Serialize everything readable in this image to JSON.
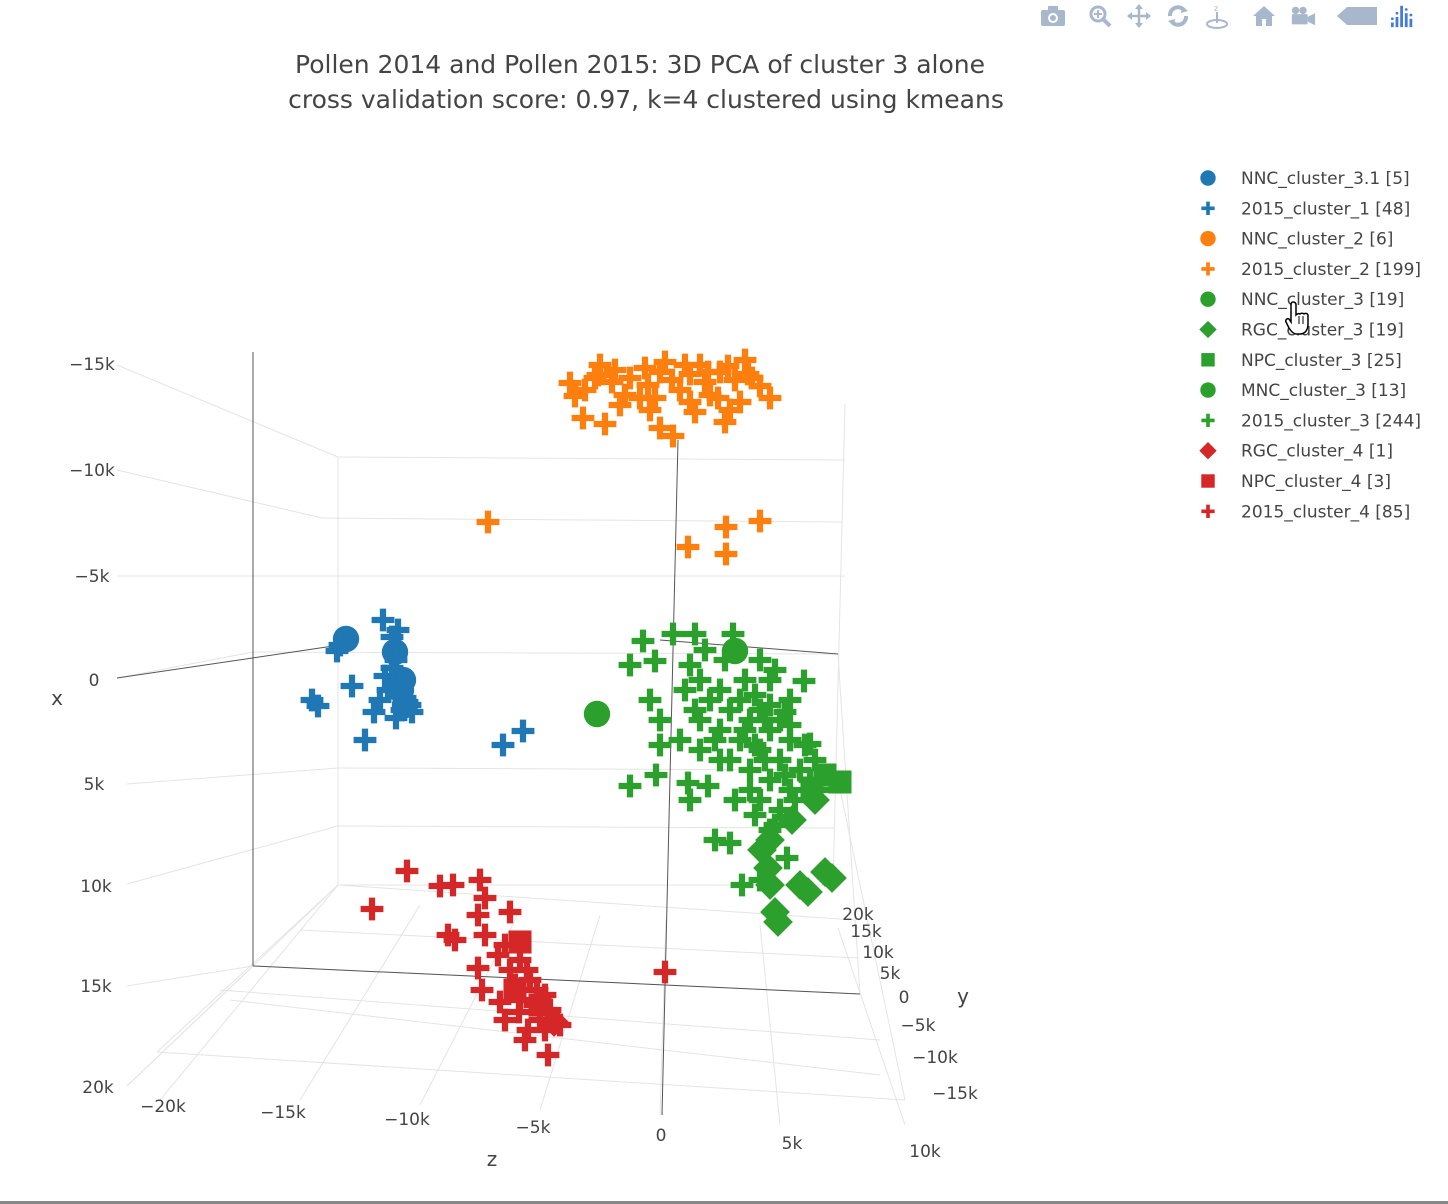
{
  "modebar": {
    "buttons": [
      "camera-icon",
      "zoom-icon",
      "pan-icon",
      "orbit-rotation-icon",
      "turntable-rotation-icon",
      "reset-camera-icon",
      "save-camera-icon",
      "toggle-hover-icon",
      "plotly-logo-icon"
    ],
    "icon_color": "#a8b8cc",
    "logo_color": "#447adb"
  },
  "chart_data": {
    "type": "scatter",
    "dimensions": 3,
    "title": "Pollen 2014 and Pollen 2015: 3D PCA of cluster 3 alone",
    "subtitle": "cross validation score: 0.97, k=4 clustered using kmeans",
    "axes": {
      "x": {
        "label": "x",
        "ticks": [
          "−15k",
          "−10k",
          "−5k",
          "0",
          "5k",
          "10k",
          "15k",
          "20k"
        ],
        "range": [
          -17500,
          20000
        ]
      },
      "y": {
        "label": "y",
        "ticks": [
          "20k",
          "15k",
          "10k",
          "5k",
          "0",
          "−5k",
          "−10k",
          "−15k"
        ],
        "range": [
          -17000,
          22000
        ]
      },
      "z": {
        "label": "z",
        "ticks": [
          "−20k",
          "−15k",
          "−10k",
          "−5k",
          "0",
          "5k",
          "10k"
        ],
        "range": [
          -22000,
          11000
        ]
      }
    },
    "legend_position": "top-right",
    "grid": true,
    "series": [
      {
        "name": "NNC_cluster_3.1 [5]",
        "symbol": "circle",
        "color": "#1f77b4",
        "points": [
          [
            346,
            639
          ],
          [
            395,
            652
          ],
          [
            403,
            680
          ],
          [
            405,
            705
          ],
          [
            401,
            690
          ]
        ]
      },
      {
        "name": "2015_cluster_1 [48]",
        "symbol": "cross",
        "color": "#1f77b4",
        "points": [
          [
            383,
            620
          ],
          [
            392,
            637
          ],
          [
            337,
            651
          ],
          [
            352,
            686
          ],
          [
            312,
            700
          ],
          [
            318,
            706
          ],
          [
            374,
            712
          ],
          [
            365,
            740
          ],
          [
            503,
            745
          ],
          [
            523,
            731
          ],
          [
            396,
            660
          ],
          [
            385,
            676
          ],
          [
            405,
            698
          ],
          [
            412,
            712
          ],
          [
            380,
            700
          ],
          [
            398,
            630
          ],
          [
            392,
            668
          ],
          [
            402,
            710
          ],
          [
            388,
            690
          ],
          [
            340,
            645
          ],
          [
            407,
            702
          ],
          [
            396,
            718
          ],
          [
            400,
            682
          ],
          [
            410,
            705
          ]
        ]
      },
      {
        "name": "NNC_cluster_2 [6]",
        "symbol": "circle",
        "color": "#ff7f0e",
        "points": []
      },
      {
        "name": "2015_cluster_2 [199]",
        "symbol": "cross",
        "color": "#ff7f0e",
        "points": [
          [
            570,
            383
          ],
          [
            585,
            390
          ],
          [
            598,
            375
          ],
          [
            612,
            382
          ],
          [
            630,
            378
          ],
          [
            648,
            385
          ],
          [
            660,
            372
          ],
          [
            672,
            380
          ],
          [
            690,
            374
          ],
          [
            705,
            382
          ],
          [
            720,
            372
          ],
          [
            735,
            380
          ],
          [
            748,
            374
          ],
          [
            760,
            386
          ],
          [
            770,
            398
          ],
          [
            583,
            418
          ],
          [
            605,
            424
          ],
          [
            620,
            405
          ],
          [
            640,
            398
          ],
          [
            660,
            428
          ],
          [
            673,
            436
          ],
          [
            690,
            402
          ],
          [
            710,
            395
          ],
          [
            725,
            422
          ],
          [
            740,
            402
          ],
          [
            600,
            365
          ],
          [
            625,
            395
          ],
          [
            655,
            398
          ],
          [
            680,
            390
          ],
          [
            700,
            365
          ],
          [
            718,
            398
          ],
          [
            745,
            360
          ],
          [
            595,
            378
          ],
          [
            615,
            370
          ],
          [
            645,
            368
          ],
          [
            665,
            362
          ],
          [
            685,
            365
          ],
          [
            708,
            372
          ],
          [
            728,
            366
          ],
          [
            752,
            378
          ],
          [
            575,
            396
          ],
          [
            650,
            410
          ],
          [
            695,
            412
          ],
          [
            730,
            410
          ],
          [
            488,
            522
          ],
          [
            726,
            527
          ],
          [
            760,
            521
          ],
          [
            688,
            547
          ],
          [
            726,
            554
          ]
        ]
      },
      {
        "name": "NNC_cluster_3 [19]",
        "symbol": "circle",
        "color": "#2ca02c",
        "points": [
          [
            597,
            714
          ],
          [
            735,
            651
          ]
        ]
      },
      {
        "name": "RGC_cluster_3 [19]",
        "symbol": "diamond",
        "color": "#2ca02c",
        "points": [
          [
            792,
            820
          ],
          [
            762,
            850
          ],
          [
            768,
            868
          ],
          [
            770,
            885
          ],
          [
            800,
            885
          ],
          [
            825,
            872
          ],
          [
            832,
            878
          ],
          [
            775,
            912
          ],
          [
            778,
            922
          ],
          [
            808,
            892
          ],
          [
            815,
            800
          ],
          [
            770,
            840
          ]
        ]
      },
      {
        "name": "NPC_cluster_3 [25]",
        "symbol": "square",
        "color": "#2ca02c",
        "points": [
          [
            840,
            782
          ],
          [
            812,
            788
          ],
          [
            825,
            775
          ]
        ]
      },
      {
        "name": "MNC_cluster_3 [13]",
        "symbol": "circle",
        "color": "#2ca02c",
        "points": []
      },
      {
        "name": "2015_cluster_3 [244]",
        "symbol": "cross",
        "color": "#2ca02c",
        "points": [
          [
            643,
            641
          ],
          [
            630,
            665
          ],
          [
            655,
            661
          ],
          [
            673,
            634
          ],
          [
            695,
            634
          ],
          [
            733,
            634
          ],
          [
            650,
            700
          ],
          [
            660,
            720
          ],
          [
            660,
            745
          ],
          [
            630,
            786
          ],
          [
            656,
            775
          ],
          [
            688,
            783
          ],
          [
            690,
            800
          ],
          [
            708,
            786
          ],
          [
            715,
            840
          ],
          [
            730,
            843
          ],
          [
            742,
            885
          ],
          [
            760,
            880
          ],
          [
            787,
            858
          ],
          [
            804,
            681
          ],
          [
            810,
            744
          ],
          [
            700,
            680
          ],
          [
            720,
            690
          ],
          [
            740,
            700
          ],
          [
            760,
            710
          ],
          [
            780,
            720
          ],
          [
            700,
            720
          ],
          [
            720,
            730
          ],
          [
            740,
            740
          ],
          [
            760,
            750
          ],
          [
            780,
            760
          ],
          [
            750,
            770
          ],
          [
            770,
            780
          ],
          [
            790,
            790
          ],
          [
            760,
            800
          ],
          [
            780,
            810
          ],
          [
            770,
            830
          ],
          [
            800,
            770
          ],
          [
            810,
            780
          ],
          [
            820,
            790
          ],
          [
            730,
            760
          ],
          [
            750,
            790
          ],
          [
            770,
            680
          ],
          [
            790,
            700
          ],
          [
            710,
            700
          ],
          [
            730,
            710
          ],
          [
            750,
            720
          ],
          [
            770,
            730
          ],
          [
            790,
            740
          ],
          [
            680,
            740
          ],
          [
            700,
            750
          ],
          [
            720,
            760
          ],
          [
            760,
            660
          ],
          [
            775,
            670
          ],
          [
            745,
            680
          ],
          [
            725,
            660
          ],
          [
            705,
            650
          ],
          [
            690,
            665
          ],
          [
            735,
            800
          ],
          [
            755,
            815
          ],
          [
            775,
            825
          ],
          [
            795,
            800
          ],
          [
            765,
            720
          ],
          [
            785,
            712
          ],
          [
            745,
            730
          ],
          [
            755,
            745
          ],
          [
            765,
            760
          ],
          [
            785,
            775
          ],
          [
            715,
            740
          ],
          [
            695,
            710
          ],
          [
            685,
            690
          ],
          [
            755,
            695
          ],
          [
            770,
            705
          ],
          [
            790,
            725
          ],
          [
            805,
            745
          ],
          [
            815,
            760
          ]
        ]
      },
      {
        "name": "RGC_cluster_4 [1]",
        "symbol": "diamond",
        "color": "#d62728",
        "points": [
          [
            554,
            1022
          ]
        ]
      },
      {
        "name": "NPC_cluster_4 [3]",
        "symbol": "square",
        "color": "#d62728",
        "points": [
          [
            520,
            942
          ],
          [
            515,
            990
          ],
          [
            540,
            1005
          ]
        ]
      },
      {
        "name": "2015_cluster_4 [85]",
        "symbol": "cross",
        "color": "#d62728",
        "points": [
          [
            407,
            871
          ],
          [
            372,
            909
          ],
          [
            440,
            886
          ],
          [
            453,
            885
          ],
          [
            480,
            880
          ],
          [
            485,
            898
          ],
          [
            510,
            912
          ],
          [
            478,
            915
          ],
          [
            455,
            940
          ],
          [
            485,
            935
          ],
          [
            478,
            968
          ],
          [
            482,
            990
          ],
          [
            510,
            970
          ],
          [
            505,
            945
          ],
          [
            520,
            960
          ],
          [
            530,
            980
          ],
          [
            545,
            995
          ],
          [
            550,
            1010
          ],
          [
            520,
            1000
          ],
          [
            540,
            1020
          ],
          [
            525,
            1040
          ],
          [
            548,
            1055
          ],
          [
            528,
            1030
          ],
          [
            500,
            1002
          ],
          [
            535,
            1005
          ],
          [
            515,
            985
          ],
          [
            545,
            1030
          ],
          [
            560,
            1025
          ],
          [
            505,
            1020
          ],
          [
            665,
            972
          ],
          [
            448,
            935
          ],
          [
            498,
            955
          ],
          [
            527,
            970
          ],
          [
            537,
            990
          ],
          [
            519,
            1012
          ]
        ]
      }
    ]
  }
}
